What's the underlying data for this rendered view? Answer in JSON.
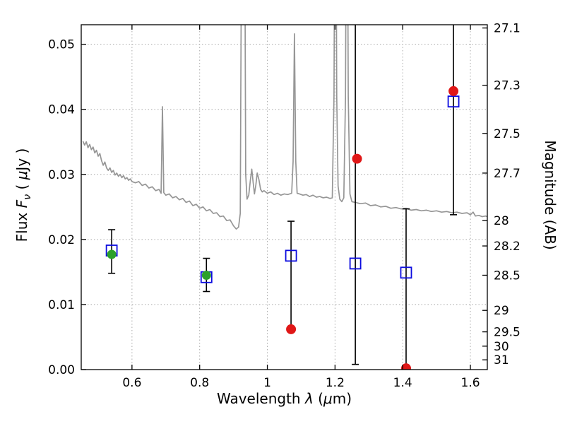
{
  "figure": {
    "background": "#ffffff",
    "frame_color": "#000000",
    "grid_color": "#aaaaaa",
    "tick_color": "#000000"
  },
  "labels": {
    "x_prefix": "Wavelength ",
    "x_lambda": "λ",
    "x_open": " (",
    "x_mu": "μ",
    "x_close": "m)",
    "y_left_word": "Flux ",
    "y_left_symbol": "F",
    "y_left_sub": "ν",
    "y_left_open": " ( ",
    "y_left_mu": "μ",
    "y_left_close": "Jy )",
    "y_right": "Magnitude (AB)"
  },
  "chart_data": {
    "type": "line+scatter",
    "title": "",
    "xlabel": "Wavelength λ (μm)",
    "ylabel_left": "Flux Fν ( μJy )",
    "ylabel_right": "Magnitude (AB)",
    "xlim": [
      0.45,
      1.65
    ],
    "ylim": [
      0.0,
      0.053
    ],
    "grid": true,
    "legend": null,
    "x_ticks": [
      0.6,
      0.8,
      1.0,
      1.2,
      1.4,
      1.6
    ],
    "x_tick_labels": [
      "0.6",
      "0.8",
      "1",
      "1.2",
      "1.4",
      "1.6"
    ],
    "y_ticks_left": [
      0.0,
      0.01,
      0.02,
      0.03,
      0.04,
      0.05
    ],
    "y_left_tick_labels": [
      "0.00",
      "0.01",
      "0.02",
      "0.03",
      "0.04",
      "0.05"
    ],
    "y_right_tick_labels": [
      "27.1",
      "27.3",
      "27.5",
      "27.7",
      "28",
      "28.2",
      "28.5",
      "29",
      "29.5",
      "30",
      "31"
    ],
    "y_right_ticks_mag": [
      27.1,
      27.3,
      27.5,
      27.7,
      28.0,
      28.2,
      28.5,
      29.0,
      29.5,
      30.0,
      31.0
    ],
    "y_right_ticks_flux": [
      0.0525,
      0.0437,
      0.0363,
      0.0302,
      0.0229,
      0.019,
      0.0145,
      0.0091,
      0.0058,
      0.0036,
      0.0015
    ],
    "series": [
      {
        "name": "model spectrum",
        "type": "line",
        "color": "#969696",
        "linewidth": 1.7,
        "x": [
          0.455,
          0.46,
          0.465,
          0.47,
          0.475,
          0.48,
          0.485,
          0.49,
          0.495,
          0.5,
          0.505,
          0.51,
          0.515,
          0.52,
          0.525,
          0.53,
          0.535,
          0.54,
          0.545,
          0.55,
          0.555,
          0.56,
          0.565,
          0.57,
          0.575,
          0.58,
          0.585,
          0.59,
          0.595,
          0.6,
          0.61,
          0.62,
          0.63,
          0.64,
          0.65,
          0.66,
          0.67,
          0.68,
          0.686,
          0.69,
          0.694,
          0.7,
          0.71,
          0.72,
          0.73,
          0.74,
          0.75,
          0.76,
          0.77,
          0.78,
          0.79,
          0.8,
          0.81,
          0.82,
          0.83,
          0.84,
          0.85,
          0.86,
          0.87,
          0.88,
          0.89,
          0.9,
          0.908,
          0.915,
          0.92,
          0.924,
          0.928,
          0.932,
          0.936,
          0.94,
          0.945,
          0.95,
          0.954,
          0.958,
          0.962,
          0.966,
          0.97,
          0.975,
          0.98,
          0.985,
          0.99,
          1.0,
          1.01,
          1.02,
          1.03,
          1.04,
          1.05,
          1.06,
          1.072,
          1.076,
          1.08,
          1.084,
          1.088,
          1.095,
          1.105,
          1.115,
          1.125,
          1.135,
          1.145,
          1.155,
          1.165,
          1.175,
          1.185,
          1.192,
          1.197,
          1.201,
          1.205,
          1.209,
          1.214,
          1.22,
          1.226,
          1.231,
          1.235,
          1.239,
          1.244,
          1.25,
          1.26,
          1.275,
          1.29,
          1.305,
          1.32,
          1.335,
          1.35,
          1.365,
          1.38,
          1.395,
          1.41,
          1.425,
          1.44,
          1.455,
          1.47,
          1.485,
          1.5,
          1.515,
          1.53,
          1.545,
          1.56,
          1.575,
          1.59,
          1.6,
          1.608,
          1.615,
          1.625,
          1.635,
          1.645,
          1.65
        ],
        "y": [
          0.0351,
          0.0345,
          0.035,
          0.0341,
          0.0346,
          0.0338,
          0.0342,
          0.0333,
          0.0337,
          0.0328,
          0.0332,
          0.0321,
          0.0314,
          0.0319,
          0.031,
          0.0306,
          0.031,
          0.0303,
          0.0306,
          0.0299,
          0.0302,
          0.0297,
          0.03,
          0.0295,
          0.0298,
          0.0293,
          0.0295,
          0.0291,
          0.0293,
          0.0289,
          0.0287,
          0.0289,
          0.0283,
          0.0285,
          0.0279,
          0.0281,
          0.0275,
          0.0277,
          0.0271,
          0.0404,
          0.0272,
          0.0268,
          0.027,
          0.0264,
          0.0266,
          0.0261,
          0.0263,
          0.0257,
          0.0259,
          0.0252,
          0.0254,
          0.0248,
          0.025,
          0.0244,
          0.0246,
          0.024,
          0.0241,
          0.0235,
          0.0236,
          0.0229,
          0.023,
          0.0221,
          0.0216,
          0.0219,
          0.024,
          0.07,
          0.095,
          0.085,
          0.03,
          0.0262,
          0.0268,
          0.0292,
          0.0308,
          0.0288,
          0.027,
          0.0284,
          0.0302,
          0.0292,
          0.0277,
          0.0273,
          0.0275,
          0.0271,
          0.0273,
          0.0269,
          0.0271,
          0.0268,
          0.027,
          0.0269,
          0.0271,
          0.032,
          0.0516,
          0.032,
          0.0271,
          0.027,
          0.0268,
          0.0269,
          0.0266,
          0.0268,
          0.0265,
          0.0266,
          0.0264,
          0.0265,
          0.0263,
          0.0264,
          0.042,
          0.096,
          0.042,
          0.0282,
          0.0262,
          0.0258,
          0.0264,
          0.042,
          0.096,
          0.042,
          0.027,
          0.0258,
          0.0257,
          0.0255,
          0.0256,
          0.0252,
          0.0253,
          0.025,
          0.0251,
          0.0248,
          0.0249,
          0.0247,
          0.0248,
          0.0245,
          0.0246,
          0.0244,
          0.0245,
          0.0243,
          0.0244,
          0.0242,
          0.0243,
          0.0241,
          0.0242,
          0.024,
          0.0241,
          0.0238,
          0.0242,
          0.0236,
          0.0237,
          0.0235,
          0.0236,
          0.0235
        ]
      },
      {
        "name": "photometry open squares",
        "type": "scatter",
        "marker": "square-open",
        "color": "#0b0bdf",
        "size": 15,
        "points": [
          {
            "x": 0.54,
            "y": 0.0183,
            "err_lo": 0.0035,
            "err_hi": 0.0032
          },
          {
            "x": 0.82,
            "y": 0.0142,
            "err_lo": 0.0022,
            "err_hi": 0.0029
          },
          {
            "x": 1.07,
            "y": 0.0175,
            "err_lo": 0.0117,
            "err_hi": 0.0053
          },
          {
            "x": 1.26,
            "y": 0.0163,
            "err_lo": 0.0155,
            "err_hi": 0.04
          },
          {
            "x": 1.41,
            "y": 0.0149,
            "err_lo": 0.0149,
            "err_hi": 0.0098
          },
          {
            "x": 1.55,
            "y": 0.0412,
            "err_lo": 0.0174,
            "err_hi": 0.015
          }
        ]
      },
      {
        "name": "green filled circles",
        "type": "scatter",
        "marker": "circle",
        "color": "#2ca02c",
        "size": 13,
        "points": [
          {
            "x": 0.54,
            "y": 0.0177
          },
          {
            "x": 0.82,
            "y": 0.0145
          }
        ]
      },
      {
        "name": "red filled circles",
        "type": "scatter",
        "marker": "circle",
        "color": "#e01717",
        "size": 14,
        "points": [
          {
            "x": 1.07,
            "y": 0.0062
          },
          {
            "x": 1.265,
            "y": 0.0324
          },
          {
            "x": 1.41,
            "y": 0.0002
          },
          {
            "x": 1.55,
            "y": 0.0428
          }
        ]
      }
    ]
  }
}
